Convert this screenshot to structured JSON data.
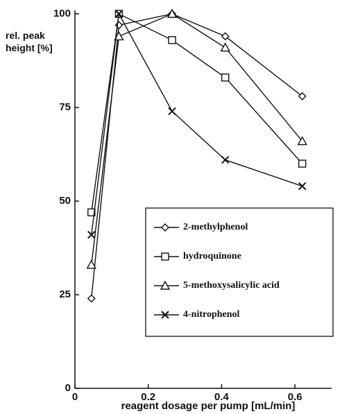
{
  "chart_data": {
    "type": "line",
    "y_label": "rel. peak height [%]",
    "x_label": "reagent dosage per pump [mL/min]",
    "x": [
      0.045,
      0.12,
      0.265,
      0.41,
      0.62
    ],
    "series": [
      {
        "name": "2-methylphenol",
        "color": "#111111",
        "marker": "diamond",
        "values": [
          24,
          97,
          100,
          94,
          78
        ]
      },
      {
        "name": "hydroquinone",
        "color": "#111111",
        "marker": "square",
        "values": [
          47,
          100,
          93,
          83,
          60
        ]
      },
      {
        "name": "5-methoxysalicylic acid",
        "color": "#111111",
        "marker": "triangle",
        "values": [
          33,
          94,
          100,
          91,
          66
        ]
      },
      {
        "name": "4-nitrophenol",
        "color": "#111111",
        "marker": "cross",
        "values": [
          41,
          100,
          74,
          61,
          54
        ]
      }
    ],
    "xlim": [
      0,
      0.7
    ],
    "xticks": [
      0,
      0.2,
      0.4,
      0.6
    ],
    "ylim": [
      0,
      100
    ],
    "yticks": [
      0,
      25,
      50,
      75,
      100
    ],
    "grid": false,
    "legend": "lower right"
  }
}
